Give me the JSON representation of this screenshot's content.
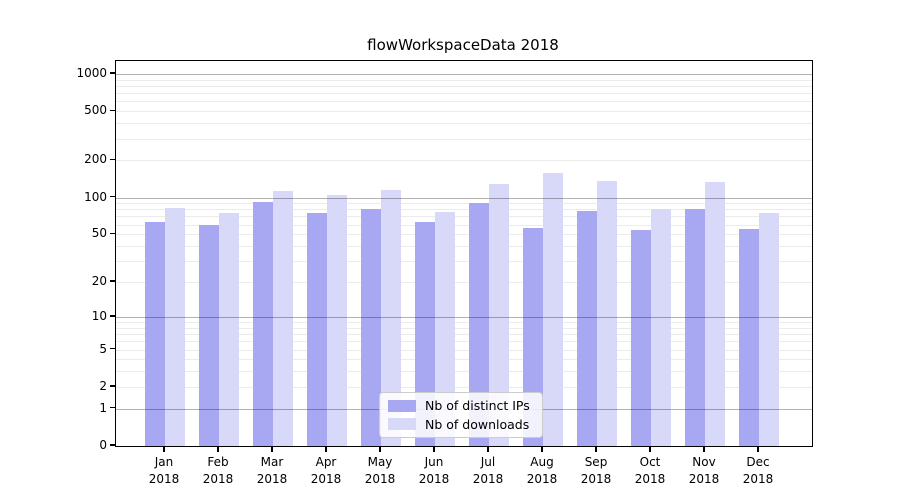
{
  "title": "flowWorkspaceData 2018",
  "colors": {
    "distinct_ips_bar": "#a8a8f2",
    "downloads_bar": "#d8d8f9",
    "major_grid": "#b3b3b3",
    "minor_grid": "#ebebeb",
    "axis": "#000000",
    "legend_border": "#cccccc"
  },
  "legend": {
    "items": [
      {
        "label": "Nb of distinct IPs",
        "series": "distinct_ips"
      },
      {
        "label": "Nb of downloads",
        "series": "downloads"
      }
    ]
  },
  "chart_data": {
    "type": "bar",
    "title": "flowWorkspaceData 2018",
    "categories": [
      "Jan",
      "Feb",
      "Mar",
      "Apr",
      "May",
      "Jun",
      "Jul",
      "Aug",
      "Sep",
      "Oct",
      "Nov",
      "Dec"
    ],
    "year_label": "2018",
    "series": [
      {
        "name": "Nb of distinct IPs",
        "color": "#a8a8f2",
        "values": [
          63,
          60,
          92,
          75,
          81,
          63,
          90,
          56,
          78,
          54,
          81,
          55
        ]
      },
      {
        "name": "Nb of downloads",
        "color": "#d8d8f9",
        "values": [
          82,
          75,
          113,
          104,
          116,
          76,
          129,
          157,
          136,
          81,
          134,
          75
        ]
      }
    ],
    "yscale": "log1p",
    "ylim": [
      0,
      1270
    ],
    "yticks": [
      0,
      1,
      2,
      5,
      10,
      20,
      50,
      100,
      200,
      500,
      1000
    ],
    "yticks_major_grid": [
      1,
      10,
      100,
      1000
    ],
    "yticks_minor_grid": [
      2,
      3,
      4,
      5,
      6,
      7,
      8,
      9,
      20,
      30,
      40,
      50,
      60,
      70,
      80,
      90,
      200,
      300,
      400,
      500,
      600,
      700,
      800,
      900
    ],
    "xlabel": "",
    "ylabel": "",
    "grid": true,
    "legend_position": "lower center"
  }
}
